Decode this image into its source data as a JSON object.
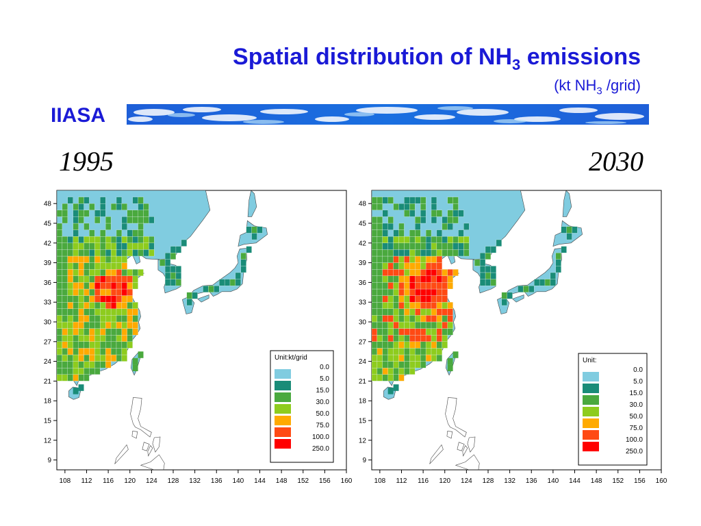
{
  "slide": {
    "title_main": "Spatial distribution of NH",
    "title_sub": "3",
    "title_end": " emissions",
    "unit_pre": "(kt NH",
    "unit_sub": "3",
    "unit_post": " /grid)",
    "organization": "IIASA"
  },
  "colors": {
    "title": "#1a1ad6",
    "sea": "#80cce0",
    "levels": [
      "#80cce0",
      "#1a8c78",
      "#4aa93e",
      "#8ecc1e",
      "#ffaa00",
      "#ff4a14",
      "#ff0000"
    ]
  },
  "axes": {
    "x_ticks": [
      "108",
      "112",
      "116",
      "120",
      "124",
      "128",
      "132",
      "136",
      "140",
      "144",
      "148",
      "152",
      "156",
      "160"
    ],
    "y_ticks": [
      "48",
      "45",
      "42",
      "39",
      "36",
      "33",
      "30",
      "27",
      "24",
      "21",
      "18",
      "15",
      "12",
      "9"
    ],
    "x_range": [
      106.5,
      160
    ],
    "y_range": [
      7.5,
      50
    ]
  },
  "maps": [
    {
      "year": "1995",
      "legend_title": "Unit:kt/grid",
      "legend_values": [
        "0.0",
        "5.0",
        "15.0",
        "30.0",
        "50.0",
        "75.0",
        "100.0",
        "250.0"
      ]
    },
    {
      "year": "2030",
      "legend_title": "Unit:",
      "legend_values": [
        "0.0",
        "5.0",
        "15.0",
        "30.0",
        "50.0",
        "75.0",
        "100.0",
        "250.0"
      ]
    }
  ]
}
